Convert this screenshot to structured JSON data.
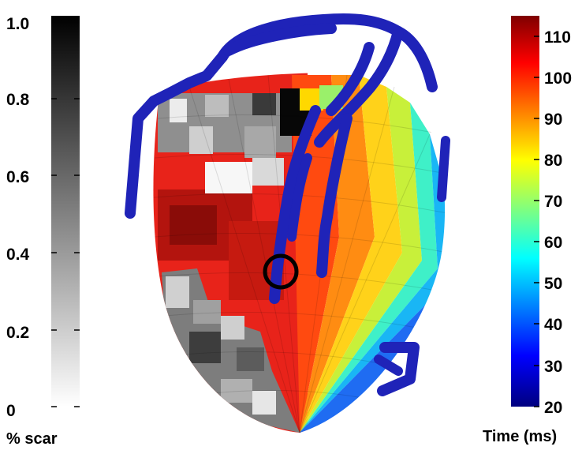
{
  "scar_colorbar": {
    "ticks": [
      "1.0",
      "0.8",
      "0.6",
      "0.4",
      "0.2",
      "0"
    ],
    "label": "% scar",
    "range": [
      0,
      1
    ],
    "color_low": "#ffffff",
    "color_high": "#000000"
  },
  "time_colorbar": {
    "ticks": [
      "110",
      "100",
      "90",
      "80",
      "70",
      "60",
      "50",
      "40",
      "30",
      "20"
    ],
    "label": "Time (ms)",
    "range": [
      20,
      115
    ],
    "colormap": "jet",
    "stops": [
      "#00007f",
      "#0000ff",
      "#00ffff",
      "#ffff00",
      "#ff0000",
      "#7f0000"
    ]
  },
  "overlay": {
    "catheter_color": "#1f23b8",
    "marker_color": "#000000"
  },
  "icons": {
    "heart": "ventricle-mesh-icon",
    "marker": "circle-target-icon"
  }
}
